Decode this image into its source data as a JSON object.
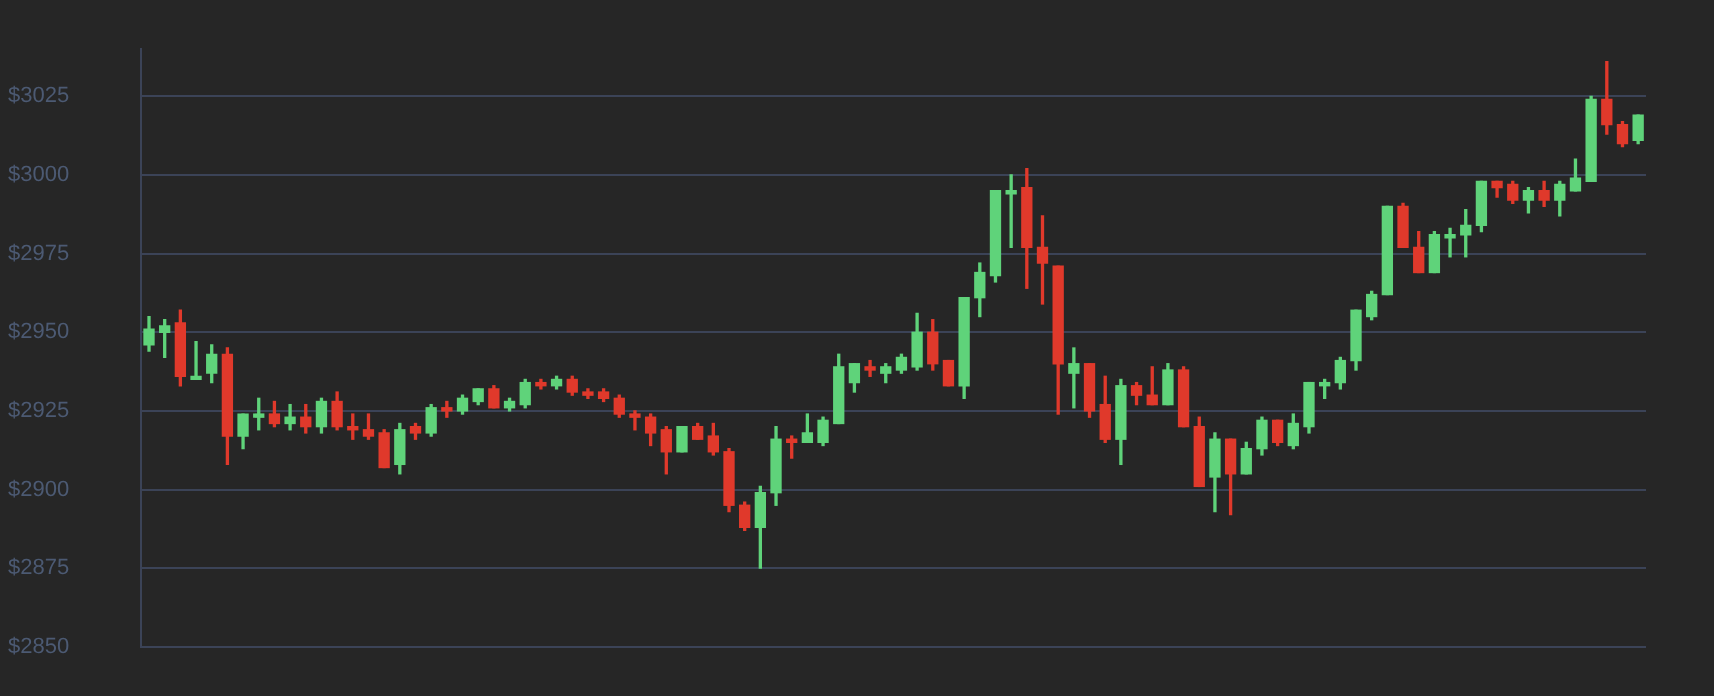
{
  "chart_data": {
    "type": "candlestick",
    "categories": [
      null,
      null,
      null,
      null,
      null,
      null,
      null,
      null,
      null,
      null,
      null,
      null,
      null,
      null,
      null,
      null,
      null,
      null,
      null,
      null,
      null,
      null,
      null,
      null,
      null,
      null,
      null,
      null,
      null,
      null,
      null,
      null,
      null,
      null,
      null,
      null,
      null,
      null,
      null,
      null,
      null,
      null,
      null,
      null,
      null,
      null,
      null,
      null,
      null,
      null,
      null,
      null,
      null,
      null,
      null,
      null,
      null,
      null,
      null,
      null,
      null,
      null,
      null,
      null,
      null,
      null,
      null,
      null,
      null,
      null,
      null,
      null,
      null,
      null,
      null,
      null,
      null,
      null,
      null,
      null,
      null,
      null,
      null,
      null,
      null,
      null,
      null,
      null,
      null,
      null,
      null,
      null,
      null,
      null,
      null,
      null
    ],
    "ohlc": [
      [
        2946,
        2955,
        2944,
        2951
      ],
      [
        2950,
        2954,
        2942,
        2952
      ],
      [
        2953,
        2957,
        2933,
        2936
      ],
      [
        2935,
        2947,
        2935,
        2936
      ],
      [
        2937,
        2946,
        2934,
        2943
      ],
      [
        2943,
        2945,
        2908,
        2917
      ],
      [
        2917,
        2924,
        2913,
        2924
      ],
      [
        2923,
        2929,
        2919,
        2924
      ],
      [
        2924,
        2928,
        2920,
        2921
      ],
      [
        2921,
        2927,
        2919,
        2923
      ],
      [
        2923,
        2927,
        2918,
        2920
      ],
      [
        2920,
        2929,
        2918,
        2928
      ],
      [
        2928,
        2931,
        2919,
        2920
      ],
      [
        2920,
        2924,
        2916,
        2919
      ],
      [
        2919,
        2924,
        2916,
        2917
      ],
      [
        2918,
        2919,
        2907,
        2907
      ],
      [
        2908,
        2921,
        2905,
        2919
      ],
      [
        2920,
        2921,
        2916,
        2918
      ],
      [
        2918,
        2927,
        2917,
        2926
      ],
      [
        2926,
        2928,
        2923,
        2925
      ],
      [
        2925,
        2930,
        2924,
        2929
      ],
      [
        2928,
        2932,
        2927,
        2932
      ],
      [
        2932,
        2933,
        2926,
        2926
      ],
      [
        2926,
        2929,
        2925,
        2928
      ],
      [
        2927,
        2935,
        2926,
        2934
      ],
      [
        2934,
        2935,
        2932,
        2933
      ],
      [
        2933,
        2936,
        2932,
        2935
      ],
      [
        2935,
        2936,
        2930,
        2931
      ],
      [
        2931,
        2932,
        2929,
        2930
      ],
      [
        2931,
        2932,
        2928,
        2929
      ],
      [
        2929,
        2930,
        2923,
        2924
      ],
      [
        2924,
        2925,
        2919,
        2923
      ],
      [
        2923,
        2924,
        2914,
        2918
      ],
      [
        2919,
        2920,
        2905,
        2912
      ],
      [
        2912,
        2920,
        2912,
        2920
      ],
      [
        2920,
        2921,
        2916,
        2916
      ],
      [
        2917,
        2921,
        2911,
        2912
      ],
      [
        2912,
        2913,
        2893,
        2895
      ],
      [
        2895,
        2896,
        2887,
        2888
      ],
      [
        2888,
        2901,
        2875,
        2899
      ],
      [
        2899,
        2920,
        2895,
        2916
      ],
      [
        2916,
        2917,
        2910,
        2915
      ],
      [
        2915,
        2924,
        2915,
        2918
      ],
      [
        2915,
        2923,
        2914,
        2922
      ],
      [
        2921,
        2943,
        2921,
        2939
      ],
      [
        2934,
        2940,
        2931,
        2940
      ],
      [
        2939,
        2941,
        2936,
        2938
      ],
      [
        2937,
        2940,
        2934,
        2939
      ],
      [
        2938,
        2943,
        2937,
        2942
      ],
      [
        2939,
        2956,
        2938,
        2950
      ],
      [
        2950,
        2954,
        2938,
        2940
      ],
      [
        2941,
        2941,
        2933,
        2933
      ],
      [
        2933,
        2961,
        2929,
        2961
      ],
      [
        2961,
        2972,
        2955,
        2969
      ],
      [
        2968,
        2995,
        2966,
        2995
      ],
      [
        2994,
        3000,
        2977,
        2995
      ],
      [
        2996,
        3002,
        2964,
        2977
      ],
      [
        2977,
        2987,
        2959,
        2972
      ],
      [
        2971,
        2971,
        2924,
        2940
      ],
      [
        2937,
        2945,
        2926,
        2940
      ],
      [
        2940,
        2940,
        2923,
        2925
      ],
      [
        2927,
        2936,
        2915,
        2916
      ],
      [
        2916,
        2935,
        2908,
        2933
      ],
      [
        2933,
        2934,
        2927,
        2930
      ],
      [
        2930,
        2939,
        2927,
        2927
      ],
      [
        2927,
        2940,
        2927,
        2938
      ],
      [
        2938,
        2939,
        2920,
        2920
      ],
      [
        2920,
        2923,
        2901,
        2901
      ],
      [
        2904,
        2918,
        2893,
        2916
      ],
      [
        2916,
        2916,
        2892,
        2905
      ],
      [
        2905,
        2915,
        2905,
        2913
      ],
      [
        2913,
        2923,
        2911,
        2922
      ],
      [
        2922,
        2922,
        2914,
        2915
      ],
      [
        2914,
        2924,
        2913,
        2921
      ],
      [
        2920,
        2934,
        2918,
        2934
      ],
      [
        2933,
        2935,
        2929,
        2934
      ],
      [
        2934,
        2942,
        2932,
        2941
      ],
      [
        2941,
        2957,
        2938,
        2957
      ],
      [
        2955,
        2963,
        2954,
        2962
      ],
      [
        2962,
        2990,
        2962,
        2990
      ],
      [
        2990,
        2991,
        2977,
        2977
      ],
      [
        2977,
        2982,
        2969,
        2969
      ],
      [
        2969,
        2982,
        2969,
        2981
      ],
      [
        2980,
        2983,
        2974,
        2981
      ],
      [
        2981,
        2989,
        2974,
        2984
      ],
      [
        2984,
        2998,
        2982,
        2998
      ],
      [
        2998,
        2998,
        2993,
        2996
      ],
      [
        2997,
        2998,
        2991,
        2992
      ],
      [
        2992,
        2996,
        2988,
        2995
      ],
      [
        2995,
        2998,
        2990,
        2992
      ],
      [
        2992,
        2998,
        2987,
        2997
      ],
      [
        2995,
        3005,
        2995,
        2999
      ],
      [
        2998,
        3025,
        2998,
        3024
      ],
      [
        3024,
        3036,
        3013,
        3016
      ],
      [
        3016,
        3017,
        3009,
        3010
      ],
      [
        3011,
        3019,
        3010,
        3019
      ]
    ],
    "colors": [
      "#5fd37a",
      "#5fd37a",
      "#e0392b",
      "#5fd37a",
      "#5fd37a",
      "#e0392b",
      "#5fd37a",
      "#5fd37a",
      "#e0392b",
      "#5fd37a",
      "#e0392b",
      "#5fd37a",
      "#e0392b",
      "#e0392b",
      "#e0392b",
      "#e0392b",
      "#5fd37a",
      "#e0392b",
      "#5fd37a",
      "#e0392b",
      "#5fd37a",
      "#5fd37a",
      "#e0392b",
      "#5fd37a",
      "#5fd37a",
      "#e0392b",
      "#5fd37a",
      "#e0392b",
      "#e0392b",
      "#e0392b",
      "#e0392b",
      "#e0392b",
      "#e0392b",
      "#e0392b",
      "#5fd37a",
      "#e0392b",
      "#e0392b",
      "#e0392b",
      "#e0392b",
      "#5fd37a",
      "#5fd37a",
      "#e0392b",
      "#5fd37a",
      "#5fd37a",
      "#5fd37a",
      "#5fd37a",
      "#e0392b",
      "#5fd37a",
      "#5fd37a",
      "#5fd37a",
      "#e0392b",
      "#e0392b",
      "#5fd37a",
      "#5fd37a",
      "#5fd37a",
      "#5fd37a",
      "#e0392b",
      "#e0392b",
      "#e0392b",
      "#5fd37a",
      "#e0392b",
      "#e0392b",
      "#5fd37a",
      "#e0392b",
      "#e0392b",
      "#5fd37a",
      "#e0392b",
      "#e0392b",
      "#5fd37a",
      "#e0392b",
      "#5fd37a",
      "#5fd37a",
      "#e0392b",
      "#5fd37a",
      "#5fd37a",
      "#5fd37a",
      "#5fd37a",
      "#5fd37a",
      "#5fd37a",
      "#5fd37a",
      "#e0392b",
      "#e0392b",
      "#5fd37a",
      "#5fd37a",
      "#5fd37a",
      "#5fd37a",
      "#e0392b",
      "#e0392b",
      "#5fd37a",
      "#e0392b",
      "#5fd37a",
      "#5fd37a",
      "#5fd37a",
      "#e0392b",
      "#e0392b",
      "#5fd37a"
    ],
    "ylim": [
      2850,
      3040
    ],
    "yticks": [
      {
        "value": 2850,
        "label": "$2850"
      },
      {
        "value": 2875,
        "label": "$2875"
      },
      {
        "value": 2900,
        "label": "$2900"
      },
      {
        "value": 2925,
        "label": "$2925"
      },
      {
        "value": 2950,
        "label": "$2950"
      },
      {
        "value": 2975,
        "label": "$2975"
      },
      {
        "value": 3000,
        "label": "$3000"
      },
      {
        "value": 3025,
        "label": "$3025"
      }
    ],
    "grid": "y",
    "tick_labels": "y",
    "legend": false
  }
}
